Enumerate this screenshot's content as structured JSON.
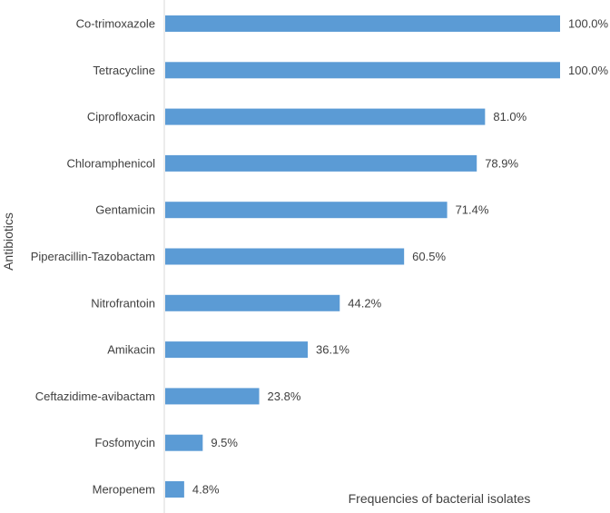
{
  "chart_data": {
    "type": "bar",
    "orientation": "horizontal",
    "categories": [
      "Co-trimoxazole",
      "Tetracycline",
      "Ciprofloxacin",
      "Chloramphenicol",
      "Gentamicin",
      "Piperacillin-Tazobactam",
      "Nitrofrantoin",
      "Amikacin",
      "Ceftazidime-avibactam",
      "Fosfomycin",
      "Meropenem"
    ],
    "values": [
      100.0,
      100.0,
      81.0,
      78.9,
      71.4,
      60.5,
      44.2,
      36.1,
      23.8,
      9.5,
      4.8
    ],
    "value_labels": [
      "100.0%",
      "100.0%",
      "81.0%",
      "78.9%",
      "71.4%",
      "60.5%",
      "44.2%",
      "36.1%",
      "23.8%",
      "9.5%",
      "4.8%"
    ],
    "xlabel": "Frequencies of bacterial isolates",
    "ylabel": "Antibiotics",
    "xlim": [
      0,
      100
    ],
    "bar_color": "#5B9BD5",
    "text_color": "#404040",
    "axis_color": "#D9D9D9",
    "grid": false,
    "legend": "none"
  }
}
